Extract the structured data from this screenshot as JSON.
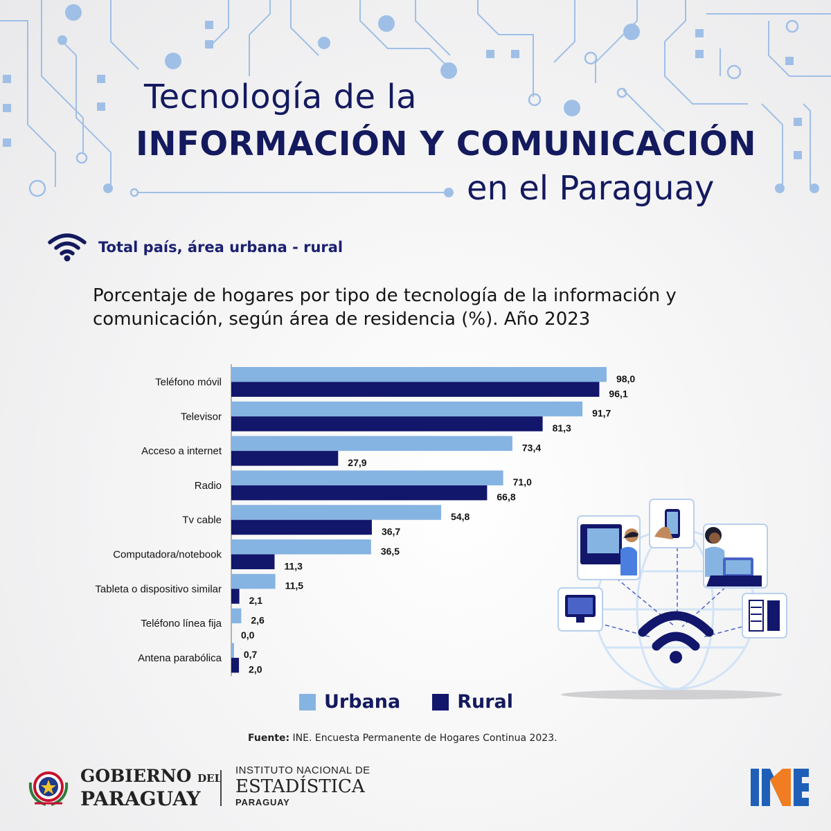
{
  "header": {
    "title_line1": "Tecnología de la",
    "title_line2": "INFORMACIÓN  Y COMUNICACIÓN",
    "title_line3": "en el Paraguay"
  },
  "subtitle": {
    "icon": "wifi-icon",
    "text": "Total país, área urbana - rural"
  },
  "colors": {
    "urbana": "#86b4e2",
    "rural": "#12176b",
    "title": "#141a5e"
  },
  "chart_data": {
    "type": "bar",
    "orientation": "horizontal",
    "title": "Porcentaje de hogares por tipo de tecnología de la información y comunicación, según área de residencia (%). Año  2023",
    "categories": [
      "Teléfono móvil",
      "Televisor",
      "Acceso a internet",
      "Radio",
      "Tv cable",
      "Computadora/notebook",
      "Tableta o dispositivo similar",
      "Teléfono línea fija",
      "Antena parabólica"
    ],
    "series": [
      {
        "name": "Urbana",
        "values": [
          98.0,
          91.7,
          73.4,
          71.0,
          54.8,
          36.5,
          11.5,
          2.6,
          0.7
        ],
        "labels": [
          "98,0",
          "91,7",
          "73,4",
          "71,0",
          "54,8",
          "36,5",
          "11,5",
          "2,6",
          "0,7"
        ]
      },
      {
        "name": "Rural",
        "values": [
          96.1,
          81.3,
          27.9,
          66.8,
          36.7,
          11.3,
          2.1,
          0.0,
          2.0
        ],
        "labels": [
          "96,1",
          "81,3",
          "27,9",
          "66,8",
          "36,7",
          "11,3",
          "2,1",
          "0,0",
          "2,0"
        ]
      }
    ],
    "xlim": [
      0,
      100
    ],
    "grid": false,
    "legend_position": "bottom"
  },
  "legend": {
    "urbana_label": "Urbana",
    "rural_label": "Rural"
  },
  "source": {
    "label": "Fuente:",
    "text": " INE. Encuesta Permanente de Hogares Continua 2023."
  },
  "footer": {
    "gov_line1": "GOBIERNO",
    "gov_del": "DEL",
    "gov_line2": "PARAGUAY",
    "ine_line1": "INSTITUTO NACIONAL DE",
    "ine_line2": "ESTADÍSTICA",
    "ine_line3": "PARAGUAY"
  }
}
